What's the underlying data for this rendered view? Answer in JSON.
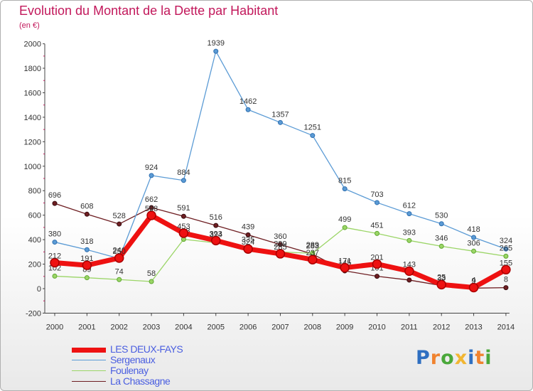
{
  "title": "Evolution du Montant de la Dette par Habitant",
  "unit_label": "(en €)",
  "logo": {
    "text": "Proxiti",
    "letter_colors": [
      "#2f6fc1",
      "#f0832f",
      "#4aa83a",
      "#f2b632",
      "#2f6fc1",
      "#f0832f",
      "#4aa83a"
    ]
  },
  "chart_data": {
    "type": "line",
    "title": "Evolution du Montant de la Dette par Habitant",
    "ylabel": "(en €)",
    "xlabel": "",
    "x": [
      "2000",
      "2001",
      "2002",
      "2003",
      "2004",
      "2005",
      "2006",
      "2007",
      "2008",
      "2009",
      "2010",
      "2011",
      "2012",
      "2013",
      "2014"
    ],
    "ylim": [
      -200,
      2000
    ],
    "yticks": [
      -200,
      0,
      200,
      400,
      600,
      800,
      1000,
      1200,
      1400,
      1600,
      1800,
      2000
    ],
    "grid": false,
    "legend_position": "bottom-left",
    "series": [
      {
        "name": "La Chassagne",
        "color": "#6e1e22",
        "values": [
          696,
          608,
          528,
          662,
          591,
          516,
          439,
          360,
          283,
          145,
          101,
          70,
          25,
          4,
          8
        ],
        "labels": [
          "696",
          "608",
          "528",
          "662",
          "591",
          "516",
          "439",
          "360",
          "283",
          "145",
          "101",
          "70",
          "25",
          "4",
          "8"
        ]
      },
      {
        "name": "Sergenaux",
        "color": "#5b9bd5",
        "values": [
          380,
          318,
          246,
          924,
          884,
          1939,
          1462,
          1357,
          1251,
          815,
          703,
          612,
          530,
          418,
          324
        ],
        "labels": [
          "380",
          "318",
          "246",
          "924",
          "884",
          "1939",
          "1462",
          "1357",
          "1251",
          "815",
          "703",
          "612",
          "530",
          "418",
          "324"
        ]
      },
      {
        "name": "Foulenay",
        "color": "#9bd567",
        "values": [
          102,
          89,
          74,
          58,
          403,
          374,
          335,
          299,
          289,
          499,
          451,
          393,
          346,
          306,
          265
        ],
        "labels": [
          "102",
          "89",
          "74",
          "58",
          "403",
          "374",
          "335",
          "299",
          "289",
          "499",
          "451",
          "393",
          "346",
          "306",
          "265"
        ]
      },
      {
        "name": "LES DEUX-FAYS",
        "color": "#ee1111",
        "values": [
          212,
          191,
          250,
          598,
          453,
          393,
          324,
          285,
          237,
          171,
          201,
          143,
          33,
          9,
          155
        ],
        "labels": [
          "212",
          "191",
          "250",
          "598",
          "453",
          "393",
          "324",
          "285",
          "237",
          "171",
          "201",
          "143",
          "33",
          "9",
          "155"
        ]
      }
    ]
  }
}
